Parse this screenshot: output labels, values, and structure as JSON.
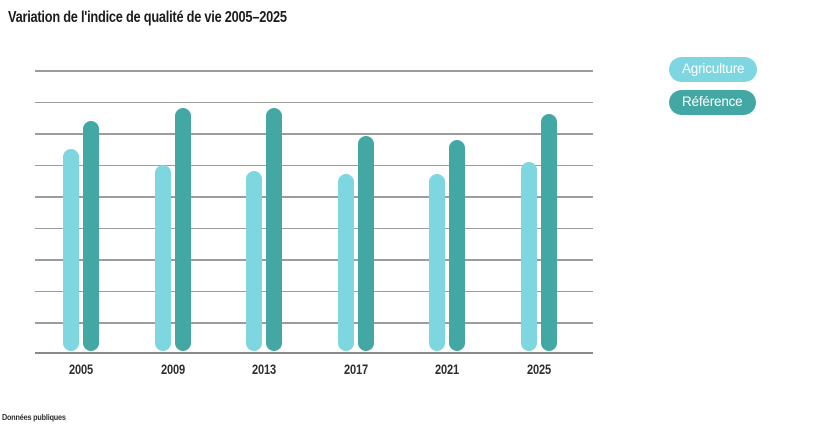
{
  "title": "Variation de l'indice de qualité de vie 2005–2025",
  "footer": "Données publiques",
  "legend": {
    "items": [
      {
        "label": "Agriculture",
        "color": "#7dd6e0"
      },
      {
        "label": "Référence",
        "color": "#43a8a3"
      }
    ]
  },
  "colors": {
    "agriculture": "#7dd6e0",
    "reference": "#43a8a3",
    "gridline": "#9c9c9c",
    "axis": "#8a8a8a",
    "title_text": "#1c1c1c",
    "label_text": "#2d2d2d",
    "background": "#ffffff"
  },
  "chart_data": {
    "type": "bar",
    "title": "Variation de l'indice de qualité de vie 2005–2025",
    "categories": [
      "2005",
      "2009",
      "2013",
      "2017",
      "2021",
      "2025"
    ],
    "series": [
      {
        "name": "Agriculture",
        "color": "#7dd6e0",
        "values": [
          64,
          59,
          57,
          56,
          56,
          60
        ]
      },
      {
        "name": "Référence",
        "color": "#43a8a3",
        "values": [
          73,
          77,
          77,
          68,
          67,
          75
        ]
      }
    ],
    "xlabel": "",
    "ylabel": "",
    "ylim": [
      0,
      90
    ],
    "gridline_step": 10,
    "y_tick_labels_visible": false,
    "grid": "horizontal",
    "legend_position": "top-right",
    "bar_style": "rounded-capsule"
  }
}
